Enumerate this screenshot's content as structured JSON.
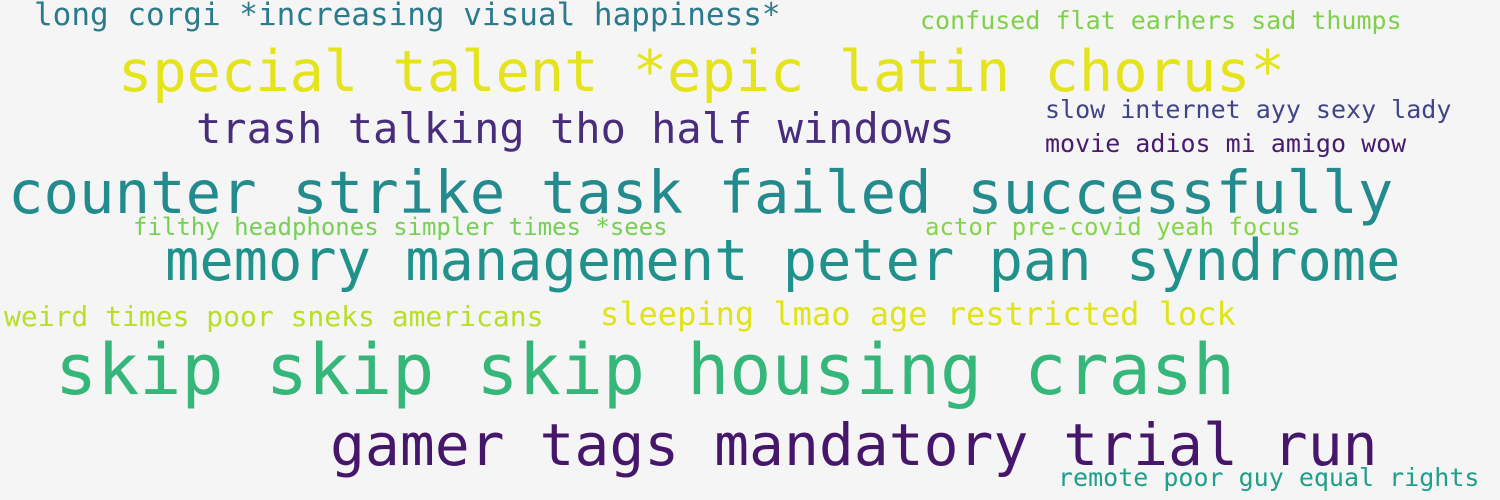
{
  "background": "#f5f5f5",
  "phrases": [
    {
      "text": "long corgi *increasing visual happiness*",
      "color": "#2c7b8d"
    },
    {
      "text": "confused flat earhers sad thumps",
      "color": "#7fd04c"
    },
    {
      "text": "special talent *epic latin chorus*",
      "color": "#e5e31c"
    },
    {
      "text": "trash talking tho half windows",
      "color": "#472d7b"
    },
    {
      "text": "slow internet ayy sexy lady",
      "color": "#414487"
    },
    {
      "text": "movie adios mi amigo wow",
      "color": "#481b6d"
    },
    {
      "text": "counter strike task failed successfully",
      "color": "#238a8d"
    },
    {
      "text": "filthy headphones simpler times *sees",
      "color": "#75d054"
    },
    {
      "text": "actor pre-covid yeah focus",
      "color": "#86d549"
    },
    {
      "text": "memory management peter pan syndrome",
      "color": "#21918c"
    },
    {
      "text": "weird times poor sneks americans",
      "color": "#b8de29"
    },
    {
      "text": "sleeping lmao age restricted lock",
      "color": "#dfe318"
    },
    {
      "text": "skip skip skip housing crash",
      "color": "#35b779"
    },
    {
      "text": "gamer tags mandatory trial run",
      "color": "#46166b"
    },
    {
      "text": "remote poor guy equal rights",
      "color": "#1f9e89"
    }
  ]
}
